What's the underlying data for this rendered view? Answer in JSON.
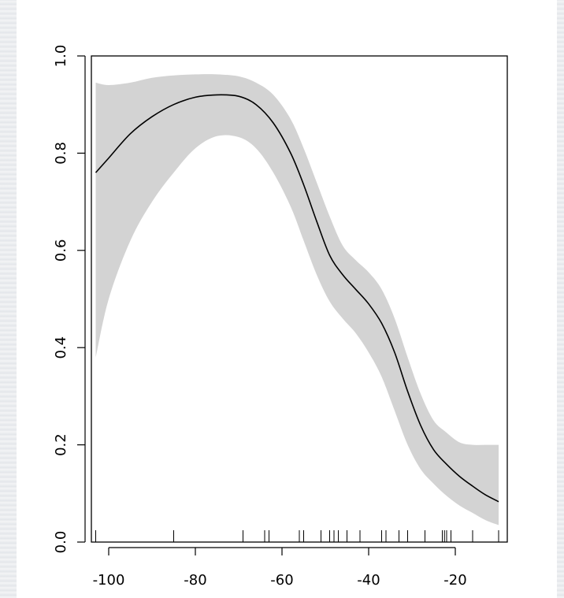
{
  "colors": {
    "background": "#e9ebee",
    "panel": "#ffffff",
    "band": "#d3d3d3",
    "line": "#000000"
  },
  "chart_data": {
    "type": "line",
    "title": "",
    "xlabel": "",
    "ylabel": "",
    "xlim": [
      -104,
      -8
    ],
    "ylim": [
      0.0,
      1.0
    ],
    "grid": false,
    "legend": "none",
    "x_ticks": [
      -100,
      -80,
      -60,
      -40,
      -20
    ],
    "x_tick_labels": [
      "-100",
      "-80",
      "-60",
      "-40",
      "-20"
    ],
    "y_ticks": [
      0.0,
      0.2,
      0.4,
      0.6,
      0.8,
      1.0
    ],
    "y_tick_labels": [
      "0.0",
      "0.2",
      "0.4",
      "0.6",
      "0.8",
      "1.0"
    ],
    "series": [
      {
        "x": [
          -103,
          -100,
          -95,
          -90,
          -85,
          -80,
          -75,
          -70,
          -66,
          -62,
          -58,
          -55,
          -52,
          -49,
          -46,
          -43,
          -40,
          -37,
          -34,
          -31,
          -28,
          -25,
          -22,
          -19,
          -16,
          -13,
          -10
        ],
        "y": [
          0.76,
          0.79,
          0.84,
          0.875,
          0.9,
          0.915,
          0.92,
          0.917,
          0.9,
          0.862,
          0.8,
          0.735,
          0.66,
          0.59,
          0.55,
          0.52,
          0.49,
          0.45,
          0.39,
          0.31,
          0.24,
          0.19,
          0.16,
          0.135,
          0.115,
          0.097,
          0.083
        ],
        "ci_lower": [
          0.38,
          0.5,
          0.62,
          0.7,
          0.76,
          0.81,
          0.835,
          0.833,
          0.81,
          0.76,
          0.69,
          0.62,
          0.55,
          0.495,
          0.46,
          0.43,
          0.39,
          0.34,
          0.27,
          0.2,
          0.15,
          0.12,
          0.095,
          0.075,
          0.06,
          0.045,
          0.035
        ],
        "ci_upper": [
          0.945,
          0.94,
          0.945,
          0.955,
          0.96,
          0.962,
          0.962,
          0.958,
          0.945,
          0.92,
          0.87,
          0.81,
          0.74,
          0.67,
          0.61,
          0.58,
          0.555,
          0.52,
          0.46,
          0.38,
          0.305,
          0.25,
          0.225,
          0.205,
          0.2,
          0.2,
          0.2
        ]
      }
    ],
    "rug": [
      -103,
      -85,
      -69,
      -64,
      -63,
      -56,
      -55,
      -51,
      -49,
      -48,
      -47,
      -45,
      -42,
      -37,
      -36,
      -33,
      -31,
      -27,
      -23,
      -22.5,
      -22,
      -21,
      -16,
      -10
    ]
  }
}
